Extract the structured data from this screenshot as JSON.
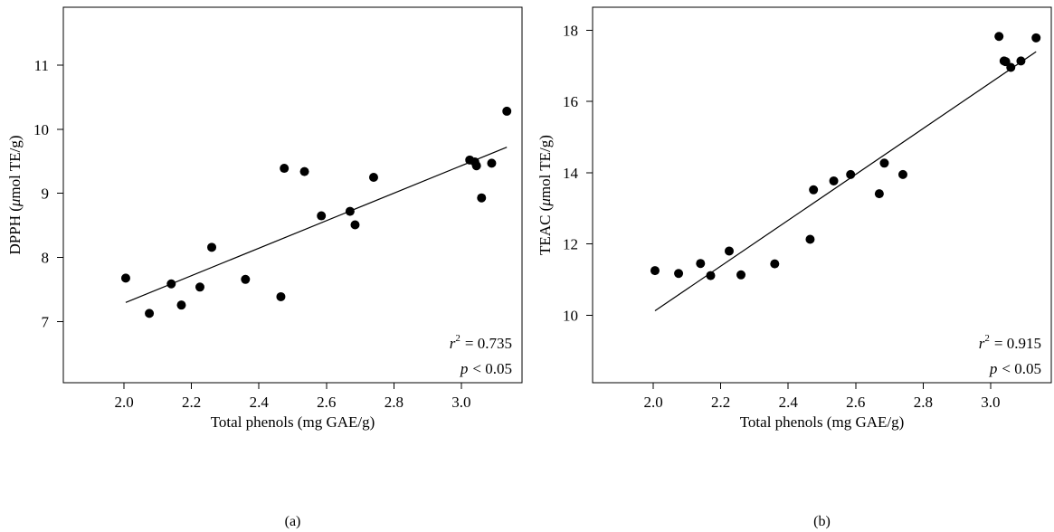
{
  "chart_data": [
    {
      "type": "scatter",
      "panel_label": "(a)",
      "xlabel": "Total phenols (mg GAE/g)",
      "ylabel_prefix": "DPPH (",
      "ylabel_mu": "μ",
      "ylabel_suffix": "mol TE/g)",
      "xlim": [
        1.82,
        3.18
      ],
      "ylim": [
        6.05,
        11.9
      ],
      "xticks": [
        2.0,
        2.2,
        2.4,
        2.6,
        2.8,
        3.0
      ],
      "xtick_labels": [
        "2.0",
        "2.2",
        "2.4",
        "2.6",
        "2.8",
        "3.0"
      ],
      "yticks": [
        7,
        8,
        9,
        10,
        11
      ],
      "ytick_labels": [
        "7",
        "8",
        "9",
        "10",
        "11"
      ],
      "points": [
        {
          "x": 2.005,
          "y": 7.68
        },
        {
          "x": 2.075,
          "y": 7.13
        },
        {
          "x": 2.14,
          "y": 7.59
        },
        {
          "x": 2.17,
          "y": 7.26
        },
        {
          "x": 2.225,
          "y": 7.54
        },
        {
          "x": 2.26,
          "y": 8.16
        },
        {
          "x": 2.36,
          "y": 7.66
        },
        {
          "x": 2.465,
          "y": 7.39
        },
        {
          "x": 2.475,
          "y": 9.39
        },
        {
          "x": 2.535,
          "y": 9.34
        },
        {
          "x": 2.585,
          "y": 8.65
        },
        {
          "x": 2.67,
          "y": 8.72
        },
        {
          "x": 2.685,
          "y": 8.51
        },
        {
          "x": 2.74,
          "y": 9.25
        },
        {
          "x": 3.025,
          "y": 9.52
        },
        {
          "x": 3.04,
          "y": 9.49
        },
        {
          "x": 3.045,
          "y": 9.43
        },
        {
          "x": 3.06,
          "y": 8.93
        },
        {
          "x": 3.09,
          "y": 9.47
        },
        {
          "x": 3.135,
          "y": 10.28
        }
      ],
      "fit_line": {
        "x": [
          2.005,
          3.135
        ],
        "y": [
          7.3,
          9.72
        ]
      },
      "r2_symbol": "r",
      "r2_exponent": "2",
      "r2_value": "= 0.735",
      "p_symbol": "p",
      "p_value": "< 0.05"
    },
    {
      "type": "scatter",
      "panel_label": "(b)",
      "xlabel": "Total phenols (mg GAE/g)",
      "ylabel_prefix": "TEAC (",
      "ylabel_mu": "μ",
      "ylabel_suffix": "mol TE/g)",
      "xlim": [
        1.82,
        3.18
      ],
      "ylim": [
        8.1,
        18.65
      ],
      "xticks": [
        2.0,
        2.2,
        2.4,
        2.6,
        2.8,
        3.0
      ],
      "xtick_labels": [
        "2.0",
        "2.2",
        "2.4",
        "2.6",
        "2.8",
        "3.0"
      ],
      "yticks": [
        10,
        12,
        14,
        16,
        18
      ],
      "ytick_labels": [
        "10",
        "12",
        "14",
        "16",
        "18"
      ],
      "points": [
        {
          "x": 2.005,
          "y": 11.25
        },
        {
          "x": 2.075,
          "y": 11.17
        },
        {
          "x": 2.14,
          "y": 11.45
        },
        {
          "x": 2.17,
          "y": 11.11
        },
        {
          "x": 2.225,
          "y": 11.8
        },
        {
          "x": 2.26,
          "y": 11.13
        },
        {
          "x": 2.36,
          "y": 11.44
        },
        {
          "x": 2.465,
          "y": 12.13
        },
        {
          "x": 2.475,
          "y": 13.52
        },
        {
          "x": 2.535,
          "y": 13.77
        },
        {
          "x": 2.585,
          "y": 13.95
        },
        {
          "x": 2.67,
          "y": 13.41
        },
        {
          "x": 2.685,
          "y": 14.27
        },
        {
          "x": 2.74,
          "y": 13.95
        },
        {
          "x": 3.025,
          "y": 17.83
        },
        {
          "x": 3.04,
          "y": 17.14
        },
        {
          "x": 3.045,
          "y": 17.12
        },
        {
          "x": 3.06,
          "y": 16.96
        },
        {
          "x": 3.09,
          "y": 17.14
        },
        {
          "x": 3.135,
          "y": 17.79
        }
      ],
      "fit_line": {
        "x": [
          2.005,
          3.135
        ],
        "y": [
          10.12,
          17.4
        ]
      },
      "r2_symbol": "r",
      "r2_exponent": "2",
      "r2_value": "= 0.915",
      "p_symbol": "p",
      "p_value": "< 0.05"
    }
  ]
}
